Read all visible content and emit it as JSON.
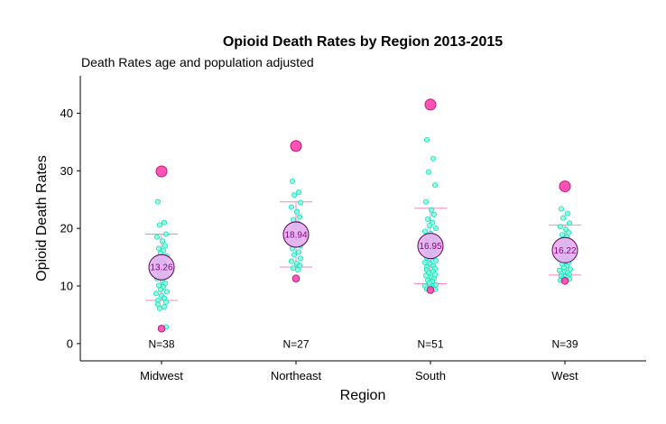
{
  "chart_data": {
    "type": "scatter",
    "title": "Opioid Death Rates by Region 2013-2015",
    "subtitle": "Death Rates age and population adjusted",
    "xlabel": "Region",
    "ylabel": "Opioid Death Rates",
    "ylim": [
      -3,
      46.5
    ],
    "yticks": [
      "0",
      "10",
      "20",
      "30",
      "40"
    ],
    "grid": false,
    "categories": [
      "Midwest",
      "Northeast",
      "South",
      "West"
    ],
    "colors": {
      "points_fill": "#7fffd4",
      "points_stroke": "#00e5c0",
      "extreme_fill": "#ff3fae",
      "extreme_stroke": "#c2187a",
      "mean_fill": "#e8b0ee",
      "mean_stroke": "#5a005a",
      "errorbar": "#ff7fc8"
    },
    "groups": [
      {
        "region": "Midwest",
        "n_label": "N=38",
        "mean": 13.26,
        "mean_label": "13.26",
        "lower": 7.5,
        "upper": 19.0,
        "max": 29.9,
        "min": 2.6,
        "points": [
          24.6,
          21.0,
          20.6,
          19.0,
          18.5,
          17.8,
          17.0,
          16.5,
          16.1,
          15.7,
          15.2,
          14.8,
          14.3,
          13.9,
          13.5,
          13.2,
          12.8,
          12.4,
          12.1,
          11.7,
          11.3,
          10.9,
          10.5,
          10.1,
          9.8,
          9.4,
          9.0,
          8.7,
          8.3,
          7.9,
          7.5,
          7.2,
          6.8,
          6.4,
          6.1,
          2.9
        ]
      },
      {
        "region": "Northeast",
        "n_label": "N=27",
        "mean": 18.94,
        "mean_label": "18.94",
        "lower": 13.3,
        "upper": 24.6,
        "max": 34.3,
        "min": 11.3,
        "points": [
          28.2,
          26.3,
          25.8,
          24.5,
          23.7,
          22.9,
          22.0,
          21.5,
          20.9,
          20.3,
          19.8,
          19.2,
          18.7,
          18.1,
          17.6,
          17.0,
          16.5,
          15.9,
          15.4,
          14.8,
          14.3,
          13.9,
          13.5,
          13.1,
          12.8
        ]
      },
      {
        "region": "South",
        "n_label": "N=51",
        "mean": 16.95,
        "mean_label": "16.95",
        "lower": 10.4,
        "upper": 23.5,
        "max": 41.5,
        "min": 9.3,
        "points": [
          35.4,
          32.1,
          29.8,
          27.5,
          24.6,
          23.2,
          22.4,
          21.6,
          21.0,
          20.5,
          20.0,
          19.5,
          19.1,
          18.7,
          18.3,
          17.9,
          17.5,
          17.1,
          16.8,
          16.5,
          16.2,
          15.9,
          15.6,
          15.3,
          15.0,
          14.7,
          14.4,
          14.1,
          13.8,
          13.5,
          13.3,
          13.0,
          12.8,
          12.5,
          12.3,
          12.0,
          11.8,
          11.5,
          11.3,
          11.0,
          10.8,
          10.5,
          10.2,
          10.0,
          9.8,
          9.6,
          9.5,
          9.4,
          14.9
        ]
      },
      {
        "region": "West",
        "n_label": "N=39",
        "mean": 16.22,
        "mean_label": "16.22",
        "lower": 11.9,
        "upper": 20.6,
        "max": 27.3,
        "min": 10.9,
        "points": [
          23.4,
          22.6,
          21.8,
          20.9,
          20.3,
          19.8,
          19.3,
          18.9,
          18.5,
          18.1,
          17.7,
          17.4,
          17.1,
          16.8,
          16.5,
          16.2,
          15.9,
          15.6,
          15.3,
          15.0,
          14.7,
          14.4,
          14.1,
          13.8,
          13.5,
          13.2,
          12.9,
          12.7,
          12.5,
          12.3,
          12.1,
          11.9,
          11.7,
          11.5,
          11.3,
          11.2,
          11.0
        ]
      }
    ]
  }
}
